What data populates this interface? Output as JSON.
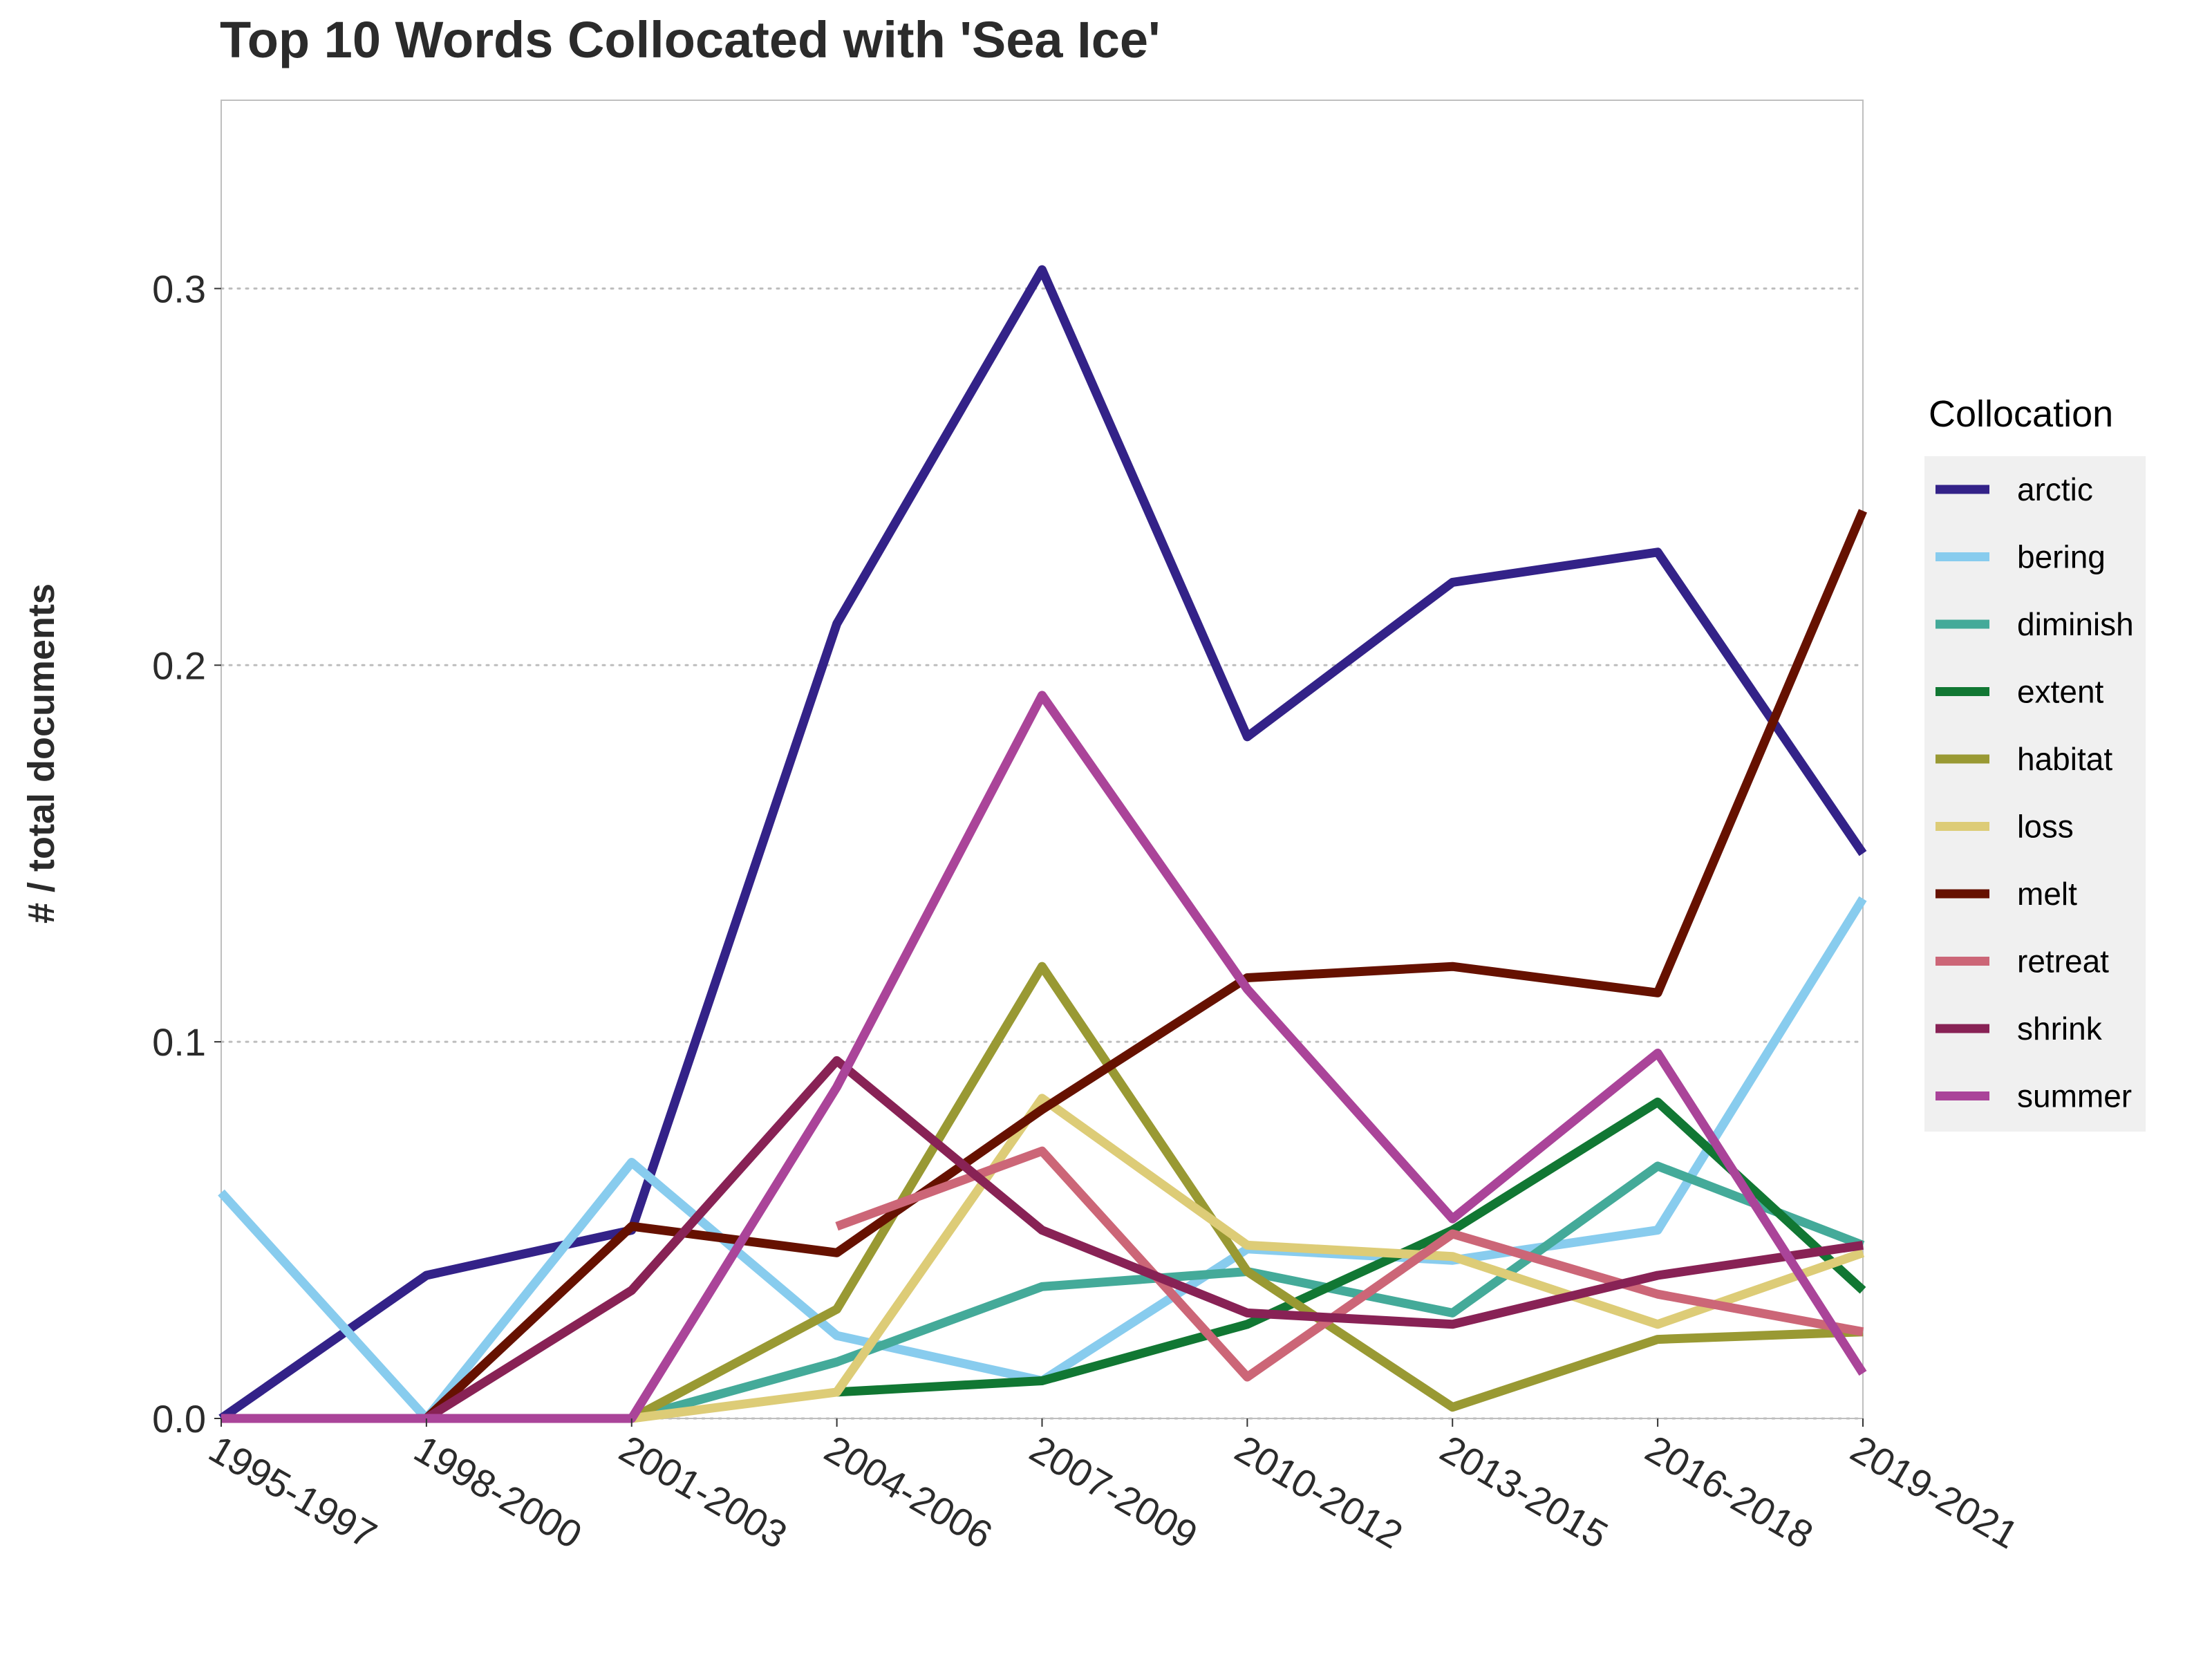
{
  "chart_data": {
    "type": "line",
    "title": "Top 10 Words Collocated with 'Sea Ice'",
    "xlabel": "",
    "ylabel": "# / total documents",
    "ylim": [
      0,
      0.35
    ],
    "yticks": [
      0.0,
      0.1,
      0.2,
      0.3
    ],
    "ytick_labels": [
      "0.0",
      "0.1",
      "0.2",
      "0.3"
    ],
    "grid": "horizontal dotted",
    "legend": {
      "title": "Collocation",
      "placement": "right"
    },
    "categories": [
      "1995-1997",
      "1998-2000",
      "2001-2003",
      "2004-2006",
      "2007-2009",
      "2010-2012",
      "2013-2015",
      "2016-2018",
      "2019-2021"
    ],
    "series": [
      {
        "name": "arctic",
        "color": "#332288",
        "values": [
          0.0,
          0.038,
          0.05,
          0.211,
          0.305,
          0.181,
          0.222,
          0.23,
          0.15
        ]
      },
      {
        "name": "bering",
        "color": "#88CCEE",
        "values": [
          0.06,
          0.0,
          0.068,
          0.022,
          0.01,
          0.045,
          0.042,
          0.05,
          0.138
        ]
      },
      {
        "name": "diminish",
        "color": "#44AA99",
        "values": [
          null,
          null,
          0.0,
          0.015,
          0.035,
          0.039,
          0.028,
          0.067,
          0.046
        ]
      },
      {
        "name": "extent",
        "color": "#117733",
        "values": [
          null,
          null,
          null,
          0.007,
          0.01,
          0.025,
          0.05,
          0.084,
          0.034
        ]
      },
      {
        "name": "habitat",
        "color": "#999933",
        "values": [
          null,
          null,
          0.0,
          0.029,
          0.12,
          0.039,
          0.003,
          0.021,
          0.023
        ]
      },
      {
        "name": "loss",
        "color": "#DDCC77",
        "values": [
          null,
          null,
          0.0,
          0.007,
          0.085,
          0.046,
          0.043,
          0.025,
          0.044
        ]
      },
      {
        "name": "melt",
        "color": "#661100",
        "values": [
          null,
          0.0,
          0.051,
          0.044,
          0.082,
          0.117,
          0.12,
          0.113,
          0.241
        ]
      },
      {
        "name": "retreat",
        "color": "#CC6677",
        "values": [
          null,
          null,
          null,
          0.051,
          0.071,
          0.011,
          0.049,
          0.033,
          0.023
        ]
      },
      {
        "name": "shrink",
        "color": "#882255",
        "values": [
          null,
          0.0,
          0.034,
          0.095,
          0.05,
          0.028,
          0.025,
          0.038,
          0.046
        ]
      },
      {
        "name": "summer",
        "color": "#AA4499",
        "values": [
          0.0,
          0.0,
          0.0,
          0.088,
          0.192,
          0.114,
          0.053,
          0.097,
          0.012
        ]
      }
    ]
  }
}
